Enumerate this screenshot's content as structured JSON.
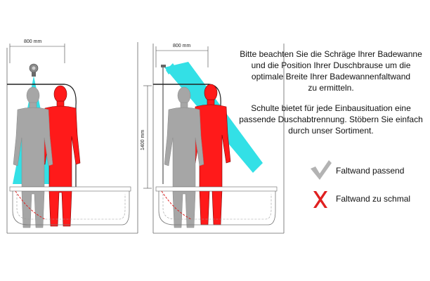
{
  "diagram": {
    "left_panel": {
      "width_label": "800 mm"
    },
    "right_panel": {
      "width_label": "800 mm",
      "height_label": "1400 mm"
    }
  },
  "text": {
    "paragraph_1": "Bitte beachten Sie die Schräge Ihrer Badewanne\nund die Position Ihrer Duschbrause um die\noptimale Breite Ihrer Badewannenfaltwand\nzu ermitteln.",
    "paragraph_2": "Schulte bietet für jede Einbausituation eine\npassende Duschabtrennung. Stöbern Sie einfach\ndurch unser Sortiment."
  },
  "legend": {
    "ok_label": "Faltwand passend",
    "bad_label": "Faltwand zu schmal"
  },
  "colors": {
    "cyan": "#33e0e6",
    "red": "#ff1a1a",
    "gray_figure": "#a6a6a6",
    "check_gray": "#b3b3b3",
    "cross_red": "#e02020"
  }
}
